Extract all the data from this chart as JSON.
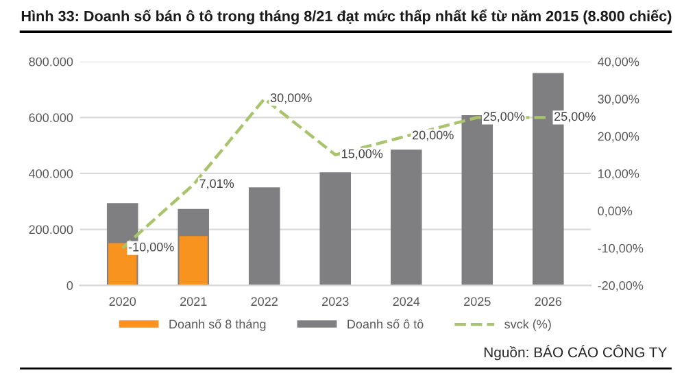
{
  "chart_data": {
    "type": "bar",
    "title": "Hình 33: Doanh số bán ô tô trong tháng 8/21 đạt mức thấp nhất kể từ năm 2015 (8.800 chiếc)",
    "categories": [
      "2020",
      "2021",
      "2022",
      "2023",
      "2024",
      "2025",
      "2026"
    ],
    "series": [
      {
        "name": "Doanh số 8 tháng",
        "color": "#f7931e",
        "values": [
          151000,
          176000,
          null,
          null,
          null,
          null,
          null
        ]
      },
      {
        "name": "Doanh số ô tô",
        "color": "#7f7f81",
        "values": [
          294000,
          273000,
          350000,
          404000,
          485000,
          608000,
          759000
        ]
      },
      {
        "name": "svck (%)",
        "type": "line",
        "axis": "y2",
        "color": "#a9c46c",
        "line_style": "dashed",
        "values": [
          -10,
          7.01,
          30,
          15,
          20,
          25,
          25
        ],
        "value_labels": [
          "-10,00%",
          "7,01%",
          "30,00%",
          "15,00%",
          "20,00%",
          "25,00%",
          "25,00%"
        ]
      }
    ],
    "ylim": [
      0,
      800000
    ],
    "yticks": [
      {
        "value": 0,
        "label": "0"
      },
      {
        "value": 200000,
        "label": "200.000"
      },
      {
        "value": 400000,
        "label": "400.000"
      },
      {
        "value": 600000,
        "label": "600.000"
      },
      {
        "value": 800000,
        "label": "800.000"
      }
    ],
    "y2lim": [
      -20,
      40
    ],
    "y2ticks": [
      {
        "value": -20,
        "label": "-20,00%"
      },
      {
        "value": -10,
        "label": "-10,00%"
      },
      {
        "value": 0,
        "label": "0,00%"
      },
      {
        "value": 10,
        "label": "10,00%"
      },
      {
        "value": 20,
        "label": "20,00%"
      },
      {
        "value": 30,
        "label": "30,00%"
      },
      {
        "value": 40,
        "label": "40,00%"
      }
    ],
    "grid": "y",
    "legend": "bottom",
    "annotations": [
      "Nguồn: BÁO CÁO CÔNG TY"
    ]
  }
}
